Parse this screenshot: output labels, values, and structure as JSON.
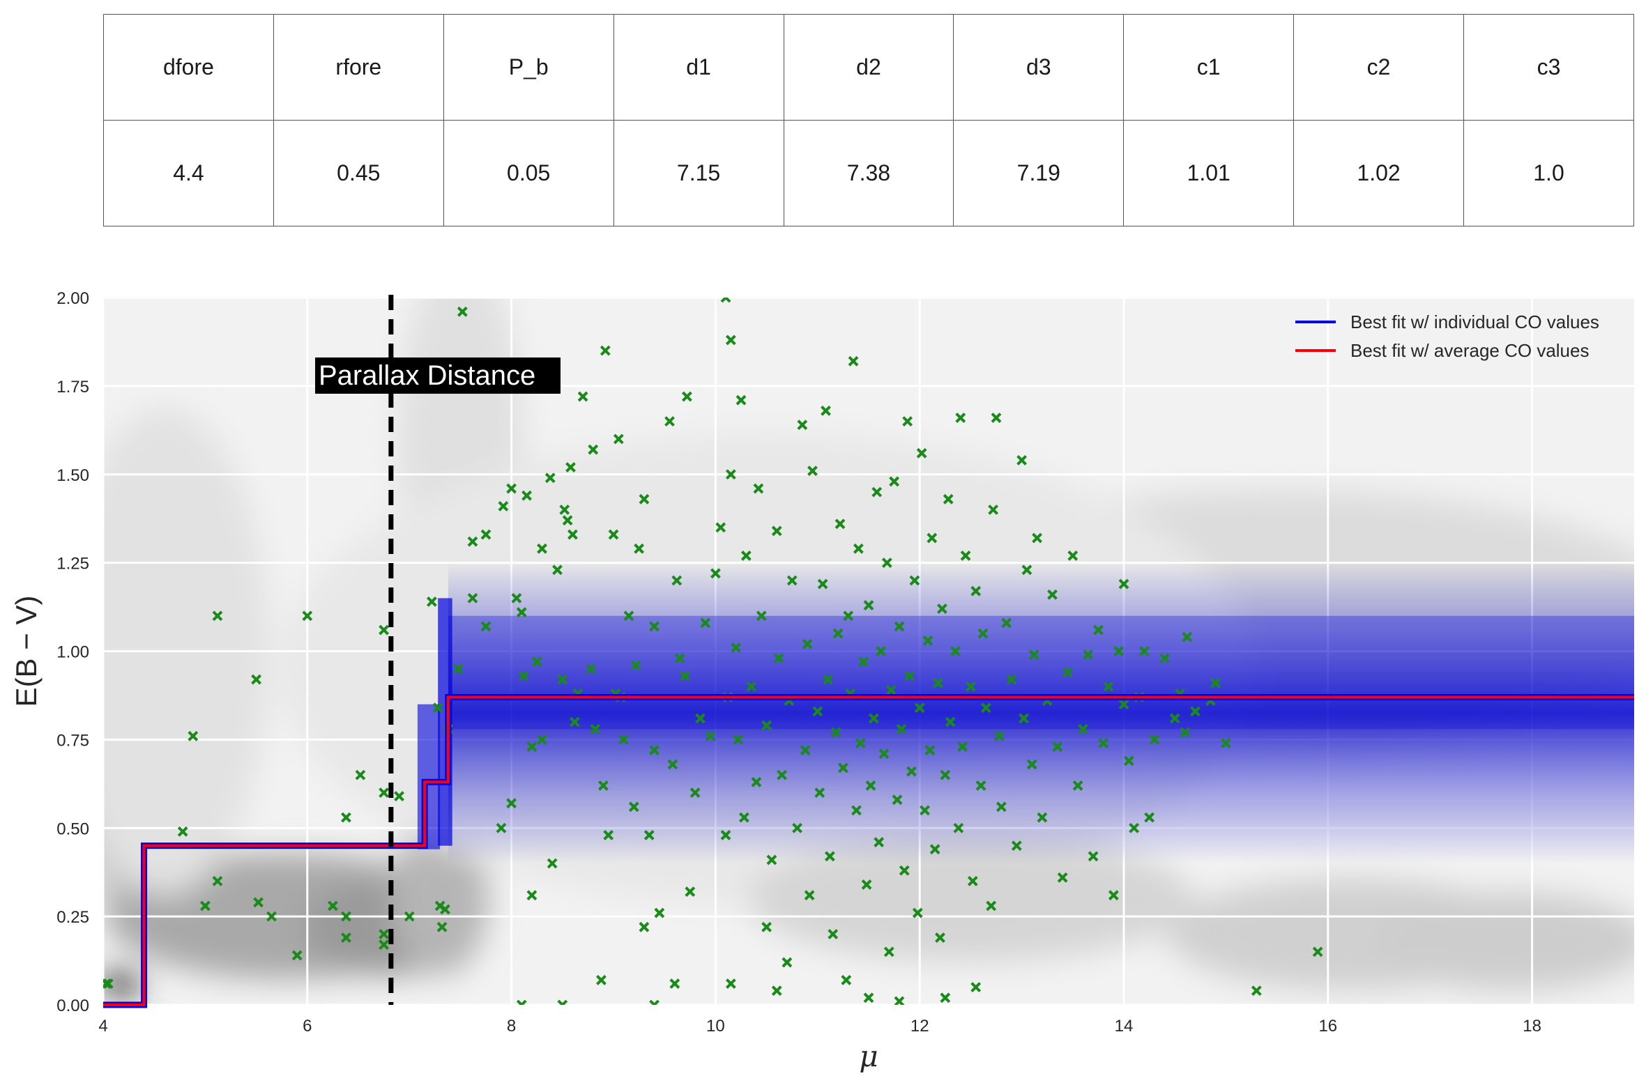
{
  "table": {
    "headers": [
      "dfore",
      "rfore",
      "P_b",
      "d1",
      "d2",
      "d3",
      "c1",
      "c2",
      "c3"
    ],
    "values": [
      "4.4",
      "0.45",
      "0.05",
      "7.15",
      "7.38",
      "7.19",
      "1.01",
      "1.02",
      "1.0"
    ]
  },
  "chart_data": {
    "type": "scatter",
    "title": "",
    "xlabel": "μ",
    "ylabel": "E(B − V)",
    "xlim": [
      4,
      19
    ],
    "ylim": [
      0,
      2
    ],
    "xticks": [
      "4",
      "6",
      "8",
      "10",
      "12",
      "14",
      "16",
      "18"
    ],
    "yticks": [
      "0.00",
      "0.25",
      "0.50",
      "0.75",
      "1.00",
      "1.25",
      "1.50",
      "1.75",
      "2.00"
    ],
    "grid": true,
    "legend_position": "top-right",
    "annotation": {
      "text": "Parallax Distance",
      "x": 6.82
    },
    "colors": {
      "best_fit_individual": "#0000e6",
      "best_fit_average": "#ff0000",
      "stars": "#1a8a1a",
      "parallax_line": "#000000"
    },
    "series": [
      {
        "name": "Best fit w/ individual CO values",
        "kind": "step-line",
        "x": [
          4,
          4.4,
          4.4,
          7.15,
          7.15,
          7.38,
          7.38,
          19
        ],
        "y": [
          0,
          0,
          0.45,
          0.45,
          0.63,
          0.63,
          0.87,
          0.87
        ]
      },
      {
        "name": "Best fit w/ average CO values",
        "kind": "step-line",
        "x": [
          4,
          4.4,
          4.4,
          7.15,
          7.15,
          7.38,
          7.38,
          19
        ],
        "y": [
          0,
          0,
          0.45,
          0.45,
          0.63,
          0.63,
          0.87,
          0.87
        ]
      },
      {
        "name": "",
        "kind": "markers",
        "points": [
          [
            4.03,
            0.06
          ],
          [
            4.05,
            0.06
          ],
          [
            4.78,
            0.49
          ],
          [
            4.88,
            0.76
          ],
          [
            5.0,
            0.28
          ],
          [
            5.12,
            0.35
          ],
          [
            5.12,
            1.1
          ],
          [
            5.5,
            0.92
          ],
          [
            5.52,
            0.29
          ],
          [
            5.65,
            0.25
          ],
          [
            5.9,
            0.14
          ],
          [
            6.0,
            1.1
          ],
          [
            6.25,
            0.28
          ],
          [
            6.38,
            0.53
          ],
          [
            6.38,
            0.25
          ],
          [
            6.38,
            0.19
          ],
          [
            6.52,
            0.65
          ],
          [
            6.75,
            0.2
          ],
          [
            6.75,
            0.17
          ],
          [
            6.75,
            0.6
          ],
          [
            6.75,
            1.06
          ],
          [
            6.9,
            0.59
          ],
          [
            7.0,
            0.25
          ],
          [
            7.22,
            1.14
          ],
          [
            7.28,
            0.84
          ],
          [
            7.3,
            0.28
          ],
          [
            7.32,
            0.22
          ],
          [
            7.35,
            0.27
          ],
          [
            7.38,
            0.78
          ],
          [
            7.48,
            0.95
          ],
          [
            7.52,
            1.96
          ],
          [
            7.62,
            1.31
          ],
          [
            7.62,
            1.15
          ],
          [
            7.75,
            1.07
          ],
          [
            7.75,
            1.33
          ],
          [
            7.9,
            0.5
          ],
          [
            7.92,
            1.41
          ],
          [
            8.0,
            1.46
          ],
          [
            8.0,
            0.57
          ],
          [
            8.05,
            1.15
          ],
          [
            8.1,
            1.11
          ],
          [
            8.12,
            0.93
          ],
          [
            8.15,
            1.44
          ],
          [
            8.2,
            0.73
          ],
          [
            8.2,
            0.31
          ],
          [
            8.25,
            0.97
          ],
          [
            8.3,
            0.75
          ],
          [
            8.3,
            1.29
          ],
          [
            8.38,
            1.49
          ],
          [
            8.4,
            0.4
          ],
          [
            8.45,
            1.23
          ],
          [
            8.5,
            0.92
          ],
          [
            8.52,
            1.4
          ],
          [
            8.55,
            1.37
          ],
          [
            8.58,
            1.52
          ],
          [
            8.6,
            1.33
          ],
          [
            8.62,
            0.8
          ],
          [
            8.65,
            0.88
          ],
          [
            8.7,
            1.72
          ],
          [
            8.78,
            0.95
          ],
          [
            8.8,
            1.57
          ],
          [
            8.82,
            0.78
          ],
          [
            8.9,
            0.62
          ],
          [
            8.92,
            1.85
          ],
          [
            8.95,
            0.48
          ],
          [
            9.0,
            1.33
          ],
          [
            9.02,
            0.88
          ],
          [
            9.05,
            1.6
          ],
          [
            9.07,
            0.87
          ],
          [
            9.1,
            0.75
          ],
          [
            9.15,
            1.1
          ],
          [
            9.2,
            0.56
          ],
          [
            9.22,
            0.96
          ],
          [
            9.25,
            1.29
          ],
          [
            9.3,
            1.43
          ],
          [
            9.3,
            0.22
          ],
          [
            9.35,
            0.48
          ],
          [
            9.4,
            0.72
          ],
          [
            9.4,
            1.07
          ],
          [
            9.45,
            0.26
          ],
          [
            9.55,
            1.65
          ],
          [
            9.58,
            0.68
          ],
          [
            9.62,
            1.2
          ],
          [
            9.65,
            0.98
          ],
          [
            9.7,
            0.93
          ],
          [
            9.72,
            1.72
          ],
          [
            9.75,
            0.32
          ],
          [
            9.8,
            0.6
          ],
          [
            9.85,
            0.81
          ],
          [
            9.9,
            1.08
          ],
          [
            9.95,
            0.76
          ],
          [
            10.0,
            1.22
          ],
          [
            10.05,
            1.35
          ],
          [
            10.1,
            0.48
          ],
          [
            10.12,
            0.87
          ],
          [
            10.15,
            1.88
          ],
          [
            10.15,
            1.5
          ],
          [
            10.2,
            1.01
          ],
          [
            10.22,
            0.75
          ],
          [
            10.25,
            1.71
          ],
          [
            10.28,
            0.53
          ],
          [
            10.3,
            1.27
          ],
          [
            10.35,
            0.9
          ],
          [
            10.4,
            0.63
          ],
          [
            10.42,
            1.46
          ],
          [
            10.45,
            1.1
          ],
          [
            10.5,
            0.79
          ],
          [
            10.5,
            0.22
          ],
          [
            10.55,
            0.41
          ],
          [
            10.6,
            1.34
          ],
          [
            10.62,
            0.98
          ],
          [
            10.65,
            0.65
          ],
          [
            10.7,
            0.12
          ],
          [
            10.72,
            0.86
          ],
          [
            10.75,
            1.2
          ],
          [
            10.8,
            0.5
          ],
          [
            10.85,
            1.64
          ],
          [
            10.88,
            0.72
          ],
          [
            10.9,
            1.02
          ],
          [
            10.92,
            0.31
          ],
          [
            10.95,
            1.51
          ],
          [
            11.0,
            0.83
          ],
          [
            11.02,
            0.6
          ],
          [
            11.05,
            1.19
          ],
          [
            11.08,
            1.68
          ],
          [
            11.1,
            0.92
          ],
          [
            11.12,
            0.42
          ],
          [
            11.15,
            0.2
          ],
          [
            11.18,
            0.77
          ],
          [
            11.2,
            1.05
          ],
          [
            11.22,
            1.36
          ],
          [
            11.25,
            0.67
          ],
          [
            11.28,
            0.07
          ],
          [
            11.3,
            1.1
          ],
          [
            11.32,
            0.88
          ],
          [
            11.35,
            1.82
          ],
          [
            11.38,
            0.55
          ],
          [
            11.4,
            1.29
          ],
          [
            11.42,
            0.74
          ],
          [
            11.45,
            0.97
          ],
          [
            11.48,
            0.34
          ],
          [
            11.5,
            1.13
          ],
          [
            11.52,
            0.62
          ],
          [
            11.55,
            0.81
          ],
          [
            11.58,
            1.45
          ],
          [
            11.6,
            0.46
          ],
          [
            11.62,
            1.0
          ],
          [
            11.65,
            0.71
          ],
          [
            11.68,
            1.25
          ],
          [
            11.7,
            0.15
          ],
          [
            11.72,
            0.89
          ],
          [
            11.75,
            1.48
          ],
          [
            11.78,
            0.58
          ],
          [
            11.8,
            1.07
          ],
          [
            11.82,
            0.78
          ],
          [
            11.85,
            0.38
          ],
          [
            11.88,
            1.65
          ],
          [
            11.9,
            0.93
          ],
          [
            11.92,
            0.66
          ],
          [
            11.95,
            1.2
          ],
          [
            11.98,
            0.26
          ],
          [
            12.0,
            0.84
          ],
          [
            12.02,
            1.56
          ],
          [
            12.05,
            0.55
          ],
          [
            12.08,
            1.03
          ],
          [
            12.1,
            0.72
          ],
          [
            12.12,
            1.32
          ],
          [
            12.15,
            0.44
          ],
          [
            12.18,
            0.91
          ],
          [
            12.2,
            0.19
          ],
          [
            12.22,
            1.12
          ],
          [
            12.25,
            0.65
          ],
          [
            12.28,
            1.43
          ],
          [
            12.3,
            0.8
          ],
          [
            12.35,
            1.0
          ],
          [
            12.38,
            0.5
          ],
          [
            12.4,
            1.66
          ],
          [
            12.42,
            0.73
          ],
          [
            12.45,
            1.27
          ],
          [
            12.5,
            0.9
          ],
          [
            12.52,
            0.35
          ],
          [
            12.55,
            1.17
          ],
          [
            12.6,
            0.62
          ],
          [
            12.62,
            1.05
          ],
          [
            12.65,
            0.84
          ],
          [
            12.7,
            0.28
          ],
          [
            12.72,
            1.4
          ],
          [
            12.75,
            1.66
          ],
          [
            12.78,
            0.76
          ],
          [
            12.8,
            0.56
          ],
          [
            12.85,
            1.08
          ],
          [
            12.9,
            0.92
          ],
          [
            12.95,
            0.45
          ],
          [
            13.0,
            1.54
          ],
          [
            13.02,
            0.81
          ],
          [
            13.05,
            1.23
          ],
          [
            13.1,
            0.68
          ],
          [
            13.12,
            0.99
          ],
          [
            13.15,
            1.32
          ],
          [
            13.2,
            0.53
          ],
          [
            13.25,
            0.86
          ],
          [
            13.3,
            1.16
          ],
          [
            13.35,
            0.73
          ],
          [
            13.4,
            0.36
          ],
          [
            13.45,
            0.94
          ],
          [
            13.5,
            1.27
          ],
          [
            13.55,
            0.62
          ],
          [
            13.6,
            0.78
          ],
          [
            13.65,
            0.99
          ],
          [
            13.7,
            0.42
          ],
          [
            13.75,
            1.06
          ],
          [
            13.8,
            0.74
          ],
          [
            13.85,
            0.9
          ],
          [
            13.9,
            0.31
          ],
          [
            13.95,
            1.0
          ],
          [
            14.0,
            0.85
          ],
          [
            14.0,
            1.19
          ],
          [
            14.05,
            0.69
          ],
          [
            14.1,
            0.5
          ],
          [
            14.15,
            0.87
          ],
          [
            14.2,
            1.0
          ],
          [
            14.25,
            0.53
          ],
          [
            14.3,
            0.75
          ],
          [
            14.4,
            0.98
          ],
          [
            14.5,
            0.81
          ],
          [
            14.55,
            0.88
          ],
          [
            14.6,
            0.77
          ],
          [
            14.62,
            1.04
          ],
          [
            14.7,
            0.83
          ],
          [
            14.85,
            0.86
          ],
          [
            14.9,
            0.91
          ],
          [
            15.0,
            0.74
          ],
          [
            15.3,
            0.04
          ],
          [
            15.9,
            0.15
          ],
          [
            9.6,
            0.06
          ],
          [
            10.15,
            0.06
          ],
          [
            10.6,
            0.04
          ],
          [
            11.5,
            0.02
          ],
          [
            12.25,
            0.02
          ],
          [
            8.1,
            0.0
          ],
          [
            8.5,
            0.0
          ],
          [
            9.4,
            0.0
          ],
          [
            11.8,
            0.01
          ],
          [
            12.55,
            0.05
          ],
          [
            8.88,
            0.07
          ],
          [
            10.1,
            2.0
          ]
        ]
      }
    ]
  }
}
